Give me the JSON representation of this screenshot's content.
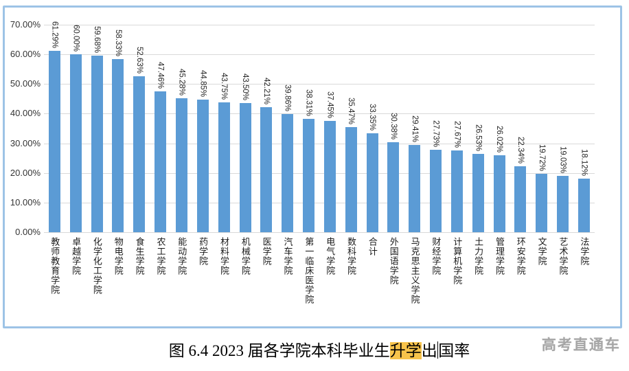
{
  "colors": {
    "bar": "#5B9BD5",
    "frame-border": "#9DC3E6",
    "gridline": "#D9D9D9",
    "highlight-bg": "#F7C34B",
    "axis-text": "#333333",
    "value-text": "#262626",
    "watermark-text": "#A6A6A6"
  },
  "chart_data": {
    "type": "bar",
    "title": "图 6.4 2023 届各学院本科毕业生升学出国率",
    "categories": [
      "教师教育学院",
      "卓越学院",
      "化学化工学院",
      "物电学院",
      "食生学院",
      "农工学院",
      "能动学院",
      "药学院",
      "材料学院",
      "机械学院",
      "医学院",
      "汽车学院",
      "第一临床医学院",
      "电气学院",
      "数科学院",
      "合计",
      "外国语学院",
      "马克思主义学院",
      "财经学院",
      "计算机学院",
      "土力学院",
      "管理学院",
      "环安学院",
      "文学院",
      "艺术学院",
      "法学院"
    ],
    "values": [
      61.29,
      60.0,
      59.68,
      58.33,
      52.63,
      47.46,
      45.28,
      44.85,
      43.75,
      43.5,
      42.21,
      39.86,
      38.31,
      37.45,
      35.47,
      33.35,
      30.38,
      29.41,
      27.73,
      27.67,
      26.53,
      26.02,
      22.34,
      19.72,
      19.03,
      18.12
    ],
    "value_labels": [
      "61.29%",
      "60.00%",
      "59.68%",
      "58.33%",
      "52.63%",
      "47.46%",
      "45.28%",
      "44.85%",
      "43.75%",
      "43.50%",
      "42.21%",
      "39.86%",
      "38.31%",
      "37.45%",
      "35.47%",
      "33.35%",
      "30.38%",
      "29.41%",
      "27.73%",
      "27.67%",
      "26.53%",
      "26.02%",
      "22.34%",
      "19.72%",
      "19.03%",
      "18.12%"
    ],
    "yticks": [
      "0.00%",
      "10.00%",
      "20.00%",
      "30.00%",
      "40.00%",
      "50.00%",
      "60.00%",
      "70.00%"
    ],
    "ylim": [
      0,
      70
    ],
    "grid": true,
    "legend": "none",
    "xlabel": "",
    "ylabel": ""
  },
  "caption": {
    "prefix": "图 6.4 2023 届各学院本科毕业生",
    "highlight": "升学",
    "after_highlight": "出",
    "after_cursor": "国率"
  },
  "watermark": "高考直通车"
}
